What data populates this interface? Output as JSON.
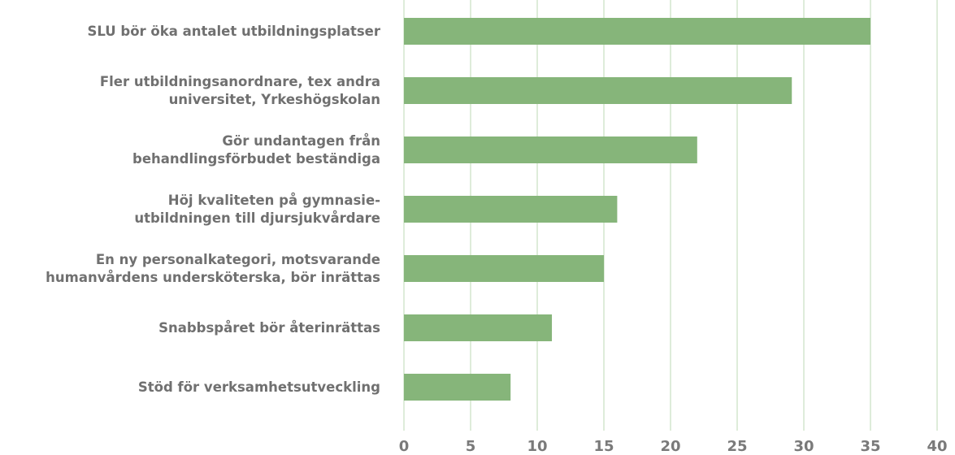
{
  "chart_data": {
    "type": "hbar",
    "categories": [
      "SLU bör öka antalet utbildningsplatser",
      "Fler utbildningsanordnare, tex andra\nuniversitet, Yrkeshögskolan",
      "Gör undantagen från\nbehandlingsförbudet beständiga",
      "Höj kvaliteten på gymnasie-\nutbildningen till djursjukvårdare",
      "En ny personalkategori, motsvarande\nhumanvårdens undersköterska, bör inrättas",
      "Snabbspåret bör återinrättas",
      "Stöd för verksamhetsutveckling"
    ],
    "values": [
      35,
      29.1,
      22,
      16,
      15,
      11.1,
      8
    ],
    "color": "#86b57a",
    "xlim": [
      0,
      40
    ],
    "xticks": [
      0,
      5,
      10,
      15,
      20,
      25,
      30,
      35,
      40
    ],
    "grid": true
  }
}
